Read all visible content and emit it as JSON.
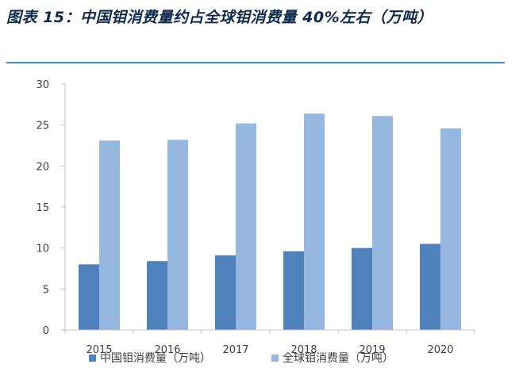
{
  "title": "图表 15：中国钼消费量约占全球钼消费量 40%左右（万吨）",
  "chart_data": {
    "type": "bar",
    "categories": [
      "2015",
      "2016",
      "2017",
      "2018",
      "2019",
      "2020"
    ],
    "series": [
      {
        "name": "中国钼消费量（万吨）",
        "values": [
          8.0,
          8.4,
          9.1,
          9.6,
          10.0,
          10.5
        ],
        "color": "#4f81bd"
      },
      {
        "name": "全球钼消费量（万吨）",
        "values": [
          23.1,
          23.2,
          25.2,
          26.4,
          26.1,
          24.6
        ],
        "color": "#95b7e0"
      }
    ],
    "ylim": [
      0,
      30
    ],
    "yticks": [
      0,
      5,
      10,
      15,
      20,
      25,
      30
    ],
    "grid": false,
    "legend": "bottom-center",
    "axis_color": "#bfbfbf"
  }
}
